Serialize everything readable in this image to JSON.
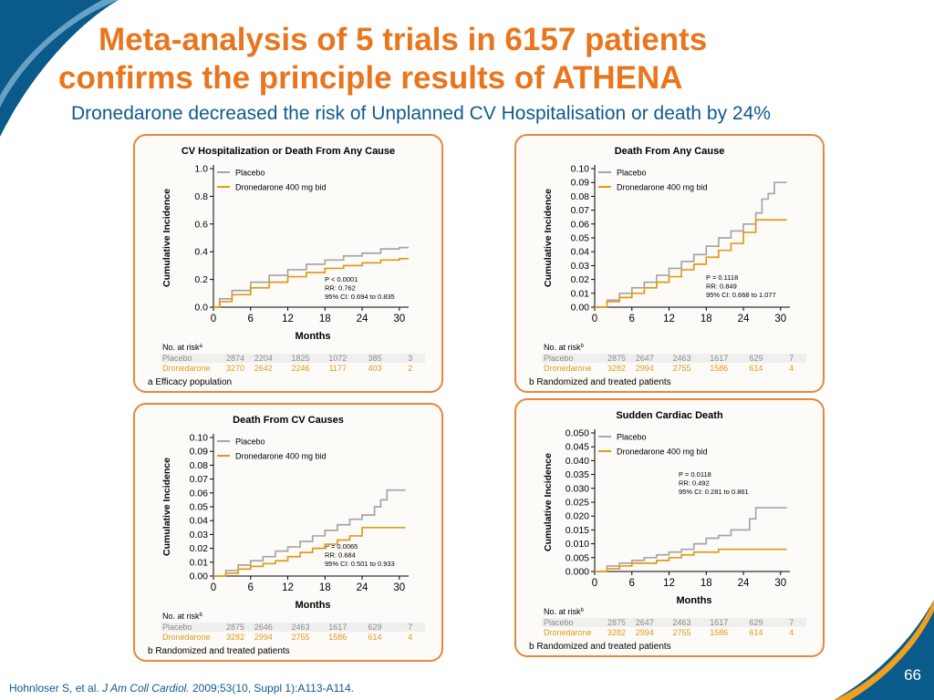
{
  "slide": {
    "title_line1": "Meta-analysis of 5 trials in 6157 patients",
    "title_line2": "confirms the principle results of ATHENA",
    "subtitle": "Dronedarone decreased the risk of Unplanned CV Hospitalisation or death by 24%",
    "citation_authors": "Hohnloser S, et al. ",
    "citation_journal": "J Am Coll Cardiol.",
    "citation_rest": " 2009;53(10, Suppl 1):A113-A114.",
    "page_number": "66"
  },
  "colors": {
    "title": "#E8761E",
    "subtitle": "#0F5A8E",
    "placebo": "#A6A6A6",
    "dronedarone": "#E09A1A",
    "panel_border": "#E8863A",
    "corner_blue": "#0B5A8C",
    "corner_orange": "#F0A020"
  },
  "chart_data": [
    {
      "type": "line",
      "title": "CV Hospitalization or Death From Any Cause",
      "xlabel": "Months",
      "ylabel": "Cumulative Incidence",
      "xlim": [
        0,
        30
      ],
      "ylim": [
        0,
        1.0
      ],
      "xticks": [
        "0",
        "6",
        "12",
        "18",
        "24",
        "30"
      ],
      "yticks": [
        "0.0",
        "0.2",
        "0.4",
        "0.6",
        "0.8",
        "1.0"
      ],
      "legend": [
        "Placebo",
        "Dronedarone 400 mg bid"
      ],
      "stats": [
        "P < 0.0001",
        "RR: 0.762",
        "95% CI: 0.694 to 0.835"
      ],
      "series": [
        {
          "name": "Placebo",
          "x": [
            0,
            1,
            3,
            6,
            9,
            12,
            15,
            18,
            21,
            24,
            27,
            30,
            32
          ],
          "y": [
            0,
            0.06,
            0.12,
            0.18,
            0.23,
            0.27,
            0.31,
            0.34,
            0.37,
            0.39,
            0.42,
            0.43,
            0.43
          ]
        },
        {
          "name": "Dronedarone 400 mg bid",
          "x": [
            0,
            1,
            3,
            6,
            9,
            12,
            15,
            18,
            21,
            24,
            27,
            30,
            32
          ],
          "y": [
            0,
            0.04,
            0.09,
            0.14,
            0.18,
            0.22,
            0.25,
            0.28,
            0.3,
            0.32,
            0.34,
            0.35,
            0.35
          ]
        }
      ],
      "risk_table": {
        "header": "No. at risk",
        "footnote_mark": "a",
        "rows": [
          {
            "label": "Placebo",
            "values": [
              "2874",
              "2204",
              "1825",
              "1072",
              "385",
              "3"
            ]
          },
          {
            "label": "Dronedarone",
            "values": [
              "3270",
              "2642",
              "2246",
              "1177",
              "403",
              "2"
            ]
          }
        ]
      },
      "note": "a Efficacy population"
    },
    {
      "type": "line",
      "title": "Death From Any Cause",
      "xlabel": "",
      "ylabel": "Cumulative Incidence",
      "xlim": [
        0,
        30
      ],
      "ylim": [
        0,
        0.1
      ],
      "xticks": [
        "0",
        "6",
        "12",
        "18",
        "24",
        "30"
      ],
      "yticks": [
        "0.00",
        "0.01",
        "0.02",
        "0.03",
        "0.04",
        "0.05",
        "0.06",
        "0.07",
        "0.08",
        "0.09",
        "0.10"
      ],
      "legend": [
        "Placebo",
        "Dronedarone 400 mg bid"
      ],
      "stats": [
        "P = 0.1118",
        "RR: 0.849",
        "95% CI: 0.668 to 1.077"
      ],
      "series": [
        {
          "name": "Placebo",
          "x": [
            0,
            2,
            4,
            6,
            8,
            10,
            12,
            14,
            16,
            18,
            20,
            22,
            24,
            26,
            27,
            28,
            29,
            31
          ],
          "y": [
            0,
            0.005,
            0.01,
            0.014,
            0.018,
            0.023,
            0.028,
            0.033,
            0.038,
            0.044,
            0.05,
            0.055,
            0.06,
            0.068,
            0.078,
            0.082,
            0.09,
            0.09
          ]
        },
        {
          "name": "Dronedarone 400 mg bid",
          "x": [
            0,
            2,
            4,
            6,
            8,
            10,
            12,
            14,
            16,
            18,
            20,
            22,
            24,
            26,
            31
          ],
          "y": [
            0,
            0.004,
            0.007,
            0.01,
            0.014,
            0.018,
            0.022,
            0.027,
            0.031,
            0.036,
            0.041,
            0.046,
            0.054,
            0.063,
            0.063
          ]
        }
      ],
      "risk_table": {
        "header": "No. at risk",
        "footnote_mark": "b",
        "rows": [
          {
            "label": "Placebo",
            "values": [
              "2875",
              "2647",
              "2463",
              "1617",
              "629",
              "7"
            ]
          },
          {
            "label": "Dronedarone",
            "values": [
              "3282",
              "2994",
              "2755",
              "1586",
              "614",
              "4"
            ]
          }
        ]
      },
      "note": "b Randomized and treated patients"
    },
    {
      "type": "line",
      "title": "Death From CV Causes",
      "xlabel": "Months",
      "ylabel": "Cumulative Incidence",
      "xlim": [
        0,
        30
      ],
      "ylim": [
        0,
        0.1
      ],
      "xticks": [
        "0",
        "6",
        "12",
        "18",
        "24",
        "30"
      ],
      "yticks": [
        "0.00",
        "0.01",
        "0.02",
        "0.03",
        "0.04",
        "0.05",
        "0.06",
        "0.07",
        "0.08",
        "0.09",
        "0.10"
      ],
      "legend": [
        "Placebo",
        "Dronedarone 400 mg bid"
      ],
      "stats": [
        "P = 0.0065",
        "RR: 0.684",
        "95% CI: 0.501 to 0.933"
      ],
      "series": [
        {
          "name": "Placebo",
          "x": [
            0,
            2,
            4,
            6,
            8,
            10,
            12,
            14,
            16,
            18,
            20,
            22,
            24,
            26,
            27,
            28,
            31
          ],
          "y": [
            0,
            0.004,
            0.008,
            0.011,
            0.014,
            0.018,
            0.021,
            0.025,
            0.029,
            0.033,
            0.037,
            0.041,
            0.044,
            0.05,
            0.055,
            0.062,
            0.062
          ]
        },
        {
          "name": "Dronedarone 400 mg bid",
          "x": [
            0,
            2,
            4,
            6,
            8,
            10,
            12,
            14,
            16,
            18,
            20,
            22,
            24,
            31
          ],
          "y": [
            0,
            0.002,
            0.005,
            0.007,
            0.009,
            0.011,
            0.014,
            0.017,
            0.02,
            0.023,
            0.026,
            0.029,
            0.035,
            0.035
          ]
        }
      ],
      "risk_table": {
        "header": "No. at risk",
        "footnote_mark": "b",
        "rows": [
          {
            "label": "Placebo",
            "values": [
              "2875",
              "2646",
              "2463",
              "1617",
              "629",
              "7"
            ]
          },
          {
            "label": "Dronedarone",
            "values": [
              "3282",
              "2994",
              "2755",
              "1586",
              "614",
              "4"
            ]
          }
        ]
      },
      "note": "b Randomized and treated patients"
    },
    {
      "type": "line",
      "title": "Sudden Cardiac Death",
      "xlabel": "Months",
      "ylabel": "Cumulative Incidence",
      "xlim": [
        0,
        30
      ],
      "ylim": [
        0,
        0.05
      ],
      "xticks": [
        "0",
        "6",
        "12",
        "18",
        "24",
        "30"
      ],
      "yticks": [
        "0.000",
        "0.005",
        "0.010",
        "0.015",
        "0.020",
        "0.025",
        "0.030",
        "0.035",
        "0.040",
        "0.045",
        "0.050"
      ],
      "legend": [
        "Placebo",
        "Dronedarone 400 mg bid"
      ],
      "stats": [
        "P = 0.0118",
        "RR: 0.492",
        "95% CI: 0.281 to 0.861"
      ],
      "series": [
        {
          "name": "Placebo",
          "x": [
            0,
            2,
            4,
            6,
            8,
            10,
            12,
            14,
            16,
            18,
            20,
            22,
            24,
            25,
            26,
            31
          ],
          "y": [
            0,
            0.002,
            0.003,
            0.004,
            0.005,
            0.006,
            0.007,
            0.008,
            0.01,
            0.012,
            0.013,
            0.015,
            0.015,
            0.019,
            0.023,
            0.023
          ]
        },
        {
          "name": "Dronedarone 400 mg bid",
          "x": [
            0,
            2,
            4,
            6,
            8,
            10,
            12,
            14,
            16,
            18,
            20,
            22,
            31
          ],
          "y": [
            0,
            0.001,
            0.002,
            0.003,
            0.003,
            0.004,
            0.005,
            0.006,
            0.007,
            0.007,
            0.008,
            0.008,
            0.008
          ]
        }
      ],
      "risk_table": {
        "header": "No. at risk",
        "footnote_mark": "b",
        "rows": [
          {
            "label": "Placebo",
            "values": [
              "2875",
              "2647",
              "2463",
              "1617",
              "629",
              "7"
            ]
          },
          {
            "label": "Dronedarone",
            "values": [
              "3282",
              "2994",
              "2755",
              "1586",
              "614",
              "4"
            ]
          }
        ]
      },
      "note": "b Randomized and treated patients"
    }
  ]
}
